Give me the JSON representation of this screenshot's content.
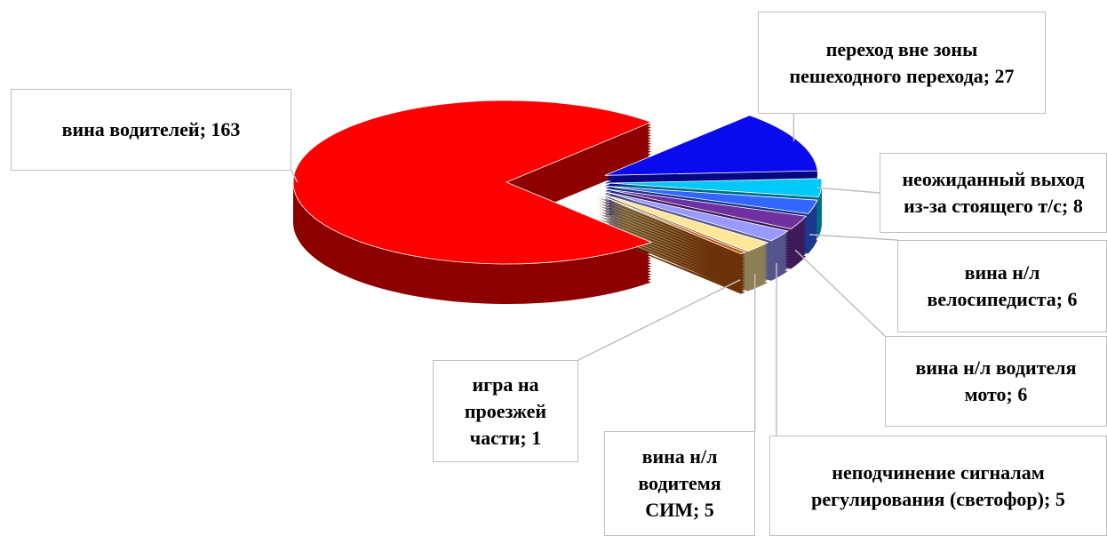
{
  "chart_data": {
    "type": "pie",
    "labels": [
      "вина водителей; 163",
      "переход вне зоны пешеходного перехода; 27",
      "неожиданный выход из-за стоящего т/с; 8",
      "вина н/л велосипедиста; 6",
      "вина н/л водителя мото; 6",
      "неподчинение сигналам регулирования (светофор); 5",
      "вина н/л водитемя СИМ; 5",
      "игра на проезжей части; 1"
    ],
    "values": [
      163,
      27,
      8,
      6,
      6,
      5,
      5,
      1
    ],
    "colors": [
      "#ff0000",
      "#0a0aee",
      "#00c8f8",
      "#3366ff",
      "#7030a0",
      "#9999ff",
      "#ffe699",
      "#c55a11"
    ]
  }
}
